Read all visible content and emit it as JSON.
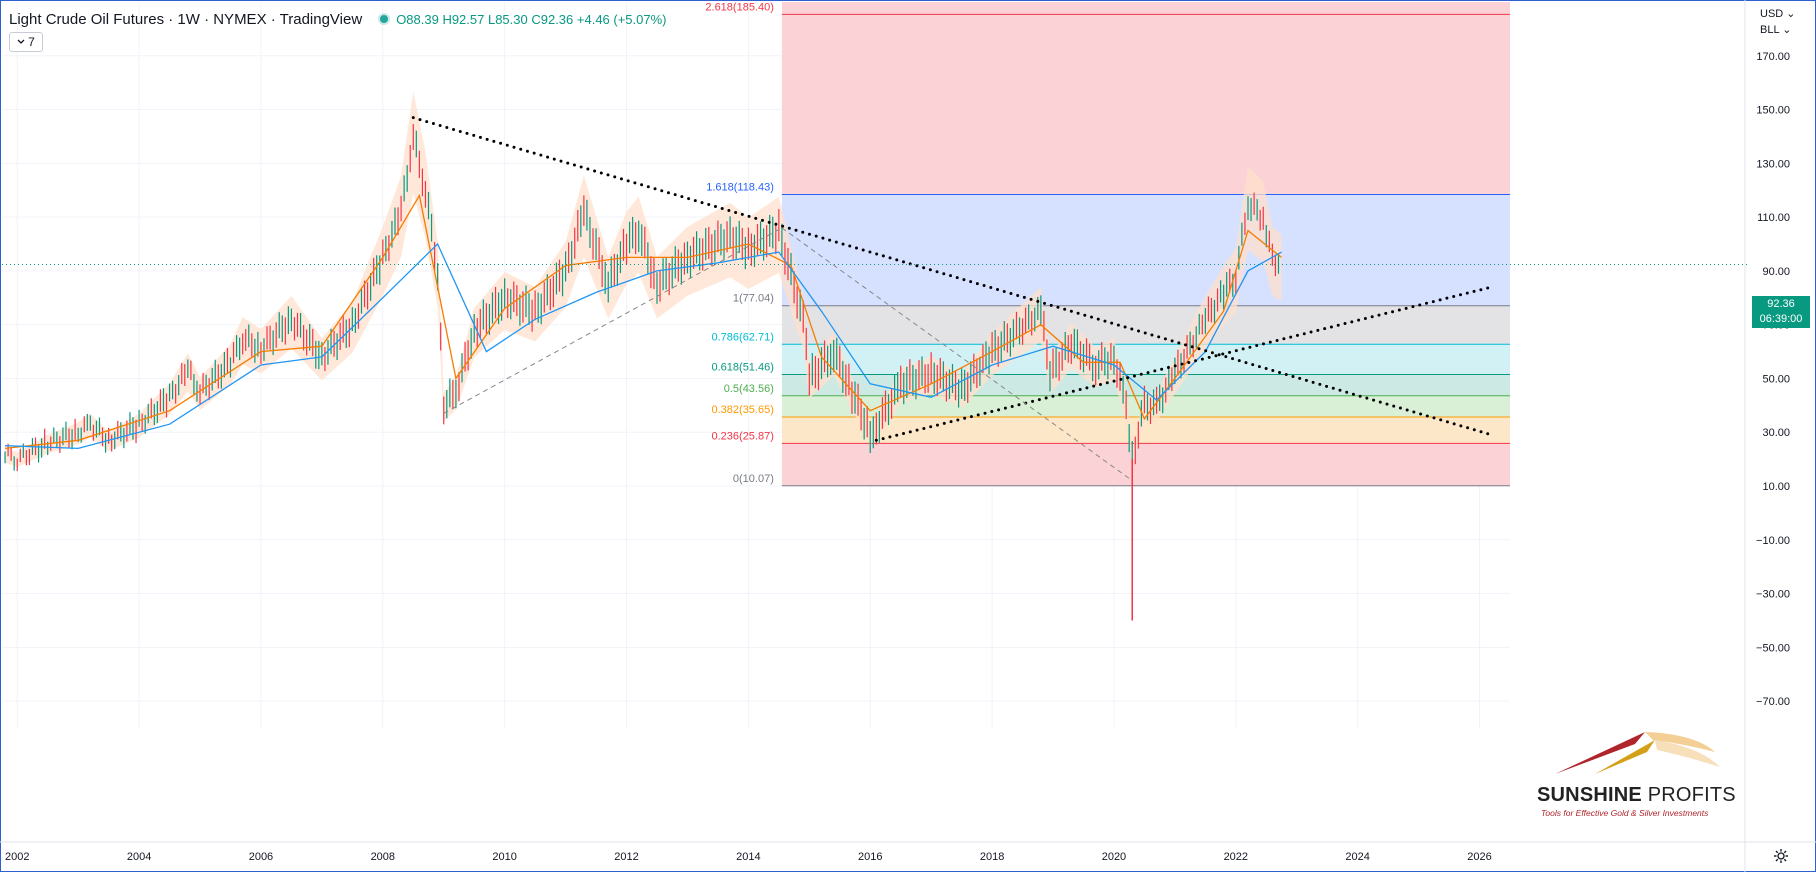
{
  "header": {
    "symbol": "Light Crude Oil Futures · 1W · NYMEX · TradingView",
    "ohlc": "O88.39  H92.57  L85.30  C92.36  +4.46 (+5.07%)",
    "collapse_count": "7"
  },
  "axis_menu": {
    "currency": "USD",
    "unit": "BLL"
  },
  "last_price": {
    "value": "92.36",
    "countdown": "06:39:00"
  },
  "logo": {
    "name_bold": "SUNSHINE",
    "name_light": "PROFITS",
    "tagline": "Tools for Effective Gold & Silver Investments"
  },
  "colors": {
    "up": "#089981",
    "down": "#f23645",
    "ma_fast": "#f57c00",
    "ma_slow": "#2196f3",
    "band": "#ffe0cc"
  },
  "chart_data": {
    "type": "line",
    "title": "Light Crude Oil Futures · 1W · NYMEX",
    "x_range": [
      2001.75,
      2026.5
    ],
    "ylim": [
      -80,
      190
    ],
    "x_ticks": [
      "2002",
      "2004",
      "2006",
      "2008",
      "2010",
      "2012",
      "2014",
      "2016",
      "2018",
      "2020",
      "2022",
      "2024",
      "2026"
    ],
    "y_ticks": [
      "170.00",
      "150.00",
      "130.00",
      "110.00",
      "90.00",
      "70.00",
      "50.00",
      "30.00",
      "10.00",
      "−10.00",
      "−30.00",
      "−50.00",
      "−70.00"
    ],
    "series": [
      {
        "name": "Price",
        "x": [
          2001.8,
          2002.0,
          2002.5,
          2003.0,
          2003.2,
          2003.5,
          2004.0,
          2004.5,
          2004.8,
          2005.0,
          2005.5,
          2005.7,
          2006.0,
          2006.5,
          2007.0,
          2007.5,
          2008.0,
          2008.3,
          2008.5,
          2008.7,
          2008.9,
          2009.0,
          2009.2,
          2009.5,
          2010.0,
          2010.5,
          2011.0,
          2011.3,
          2011.7,
          2012.0,
          2012.2,
          2012.5,
          2013.0,
          2013.7,
          2014.0,
          2014.5,
          2014.9,
          2015.0,
          2015.4,
          2015.7,
          2016.0,
          2016.1,
          2016.5,
          2017.0,
          2017.5,
          2018.0,
          2018.8,
          2018.95,
          2019.3,
          2019.7,
          2020.0,
          2020.2,
          2020.3,
          2020.5,
          2020.7,
          2021.0,
          2021.5,
          2021.8,
          2022.0,
          2022.2,
          2022.45,
          2022.6,
          2022.75
        ],
        "values": [
          22,
          20,
          26,
          30,
          33,
          27,
          33,
          43,
          53,
          45,
          56,
          65,
          61,
          72,
          58,
          70,
          95,
          112,
          140,
          120,
          90,
          40,
          45,
          68,
          80,
          75,
          90,
          112,
          85,
          100,
          105,
          85,
          95,
          103,
          98,
          105,
          72,
          50,
          60,
          45,
          30,
          32,
          48,
          52,
          46,
          60,
          75,
          52,
          63,
          55,
          58,
          40,
          20,
          40,
          40,
          52,
          72,
          82,
          88,
          115,
          110,
          95,
          92.36
        ]
      },
      {
        "name": "",
        "x": [
          2001.8,
          2003,
          2004.5,
          2006,
          2007,
          2008,
          2008.6,
          2009.2,
          2010,
          2011,
          2012,
          2013,
          2014,
          2014.7,
          2015.2,
          2016,
          2017,
          2018,
          2018.8,
          2019.5,
          2020.1,
          2020.5,
          2021,
          2021.8,
          2022.2,
          2022.75
        ],
        "values": [
          24,
          27,
          38,
          60,
          62,
          95,
          118,
          50,
          76,
          92,
          95,
          95,
          100,
          92,
          58,
          38,
          48,
          60,
          70,
          56,
          56,
          35,
          50,
          75,
          105,
          95
        ]
      },
      {
        "name": "",
        "x": [
          2001.8,
          2003,
          2004.5,
          2006,
          2007,
          2008,
          2008.9,
          2009.7,
          2010.5,
          2011.5,
          2012.5,
          2013.5,
          2014.5,
          2015.2,
          2016,
          2017,
          2018,
          2019,
          2020,
          2020.7,
          2021.5,
          2022.2,
          2022.75
        ],
        "values": [
          25,
          24,
          33,
          55,
          58,
          80,
          100,
          60,
          72,
          82,
          90,
          93,
          97,
          75,
          48,
          43,
          55,
          62,
          55,
          42,
          60,
          90,
          97
        ]
      }
    ],
    "fibonacci": [
      {
        "level": "2.618(185.40)",
        "value": 185.4,
        "color": "#f23645"
      },
      {
        "level": "1.618(118.43)",
        "value": 118.43,
        "color": "#2962ff"
      },
      {
        "level": "1(77.04)",
        "value": 77.04,
        "color": "#787b86"
      },
      {
        "level": "0.786(62.71)",
        "value": 62.71,
        "color": "#00bcd4"
      },
      {
        "level": "0.618(51.46)",
        "value": 51.46,
        "color": "#089981"
      },
      {
        "level": "0.5(43.56)",
        "value": 43.56,
        "color": "#4caf50"
      },
      {
        "level": "0.382(35.65)",
        "value": 35.65,
        "color": "#ff9800"
      },
      {
        "level": "0.236(25.87)",
        "value": 25.87,
        "color": "#f23645"
      },
      {
        "level": "0(10.07)",
        "value": 10.07,
        "color": "#787b86"
      }
    ],
    "fib_start_x": 2014.55,
    "trendlines": [
      {
        "name": "descending-resistance",
        "style": "dotted",
        "x": [
          2008.5,
          2026.2
        ],
        "y": [
          147,
          29
        ]
      },
      {
        "name": "ascending-support",
        "style": "dotted",
        "x": [
          2016.1,
          2026.2
        ],
        "y": [
          27,
          84
        ]
      },
      {
        "name": "ascending-dashed",
        "style": "dashed",
        "x": [
          2009.0,
          2014.55
        ],
        "y": [
          37,
          106
        ]
      },
      {
        "name": "descending-dashed",
        "style": "dashed",
        "x": [
          2014.55,
          2020.3
        ],
        "y": [
          106,
          12
        ]
      }
    ],
    "min_wick": {
      "x": 2020.3,
      "value": -40
    },
    "last_price_line": 92.36,
    "grid": true,
    "legend": "none"
  }
}
